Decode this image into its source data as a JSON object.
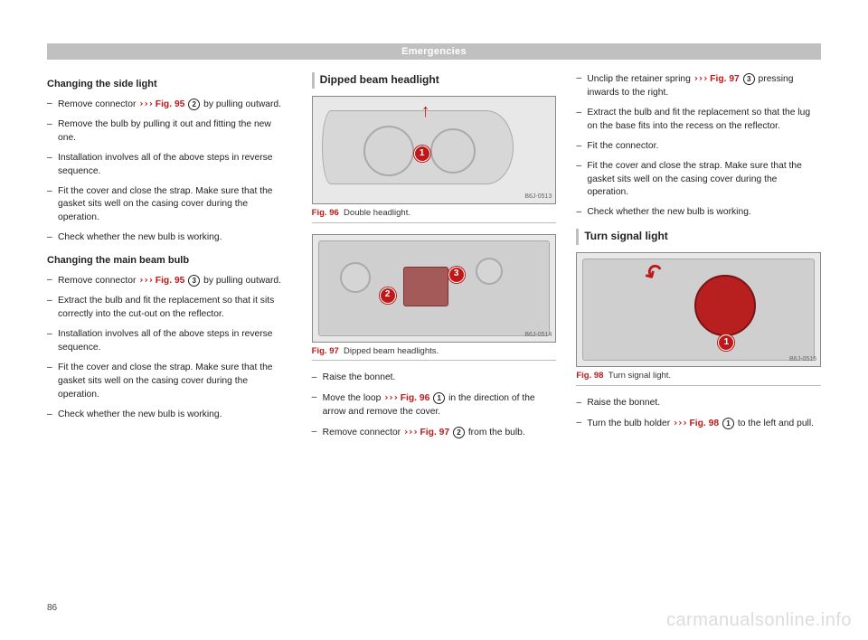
{
  "header": "Emergencies",
  "page_number": "86",
  "watermark": "carmanualsonline.info",
  "col1": {
    "h_side": "Changing the side light",
    "side_steps": [
      {
        "pre": "Remove connector ",
        "ref": "Fig. 95",
        "circle": "2",
        "post": " by pulling outward."
      },
      {
        "plain": "Remove the bulb by pulling it out and fitting the new one."
      },
      {
        "plain": "Installation involves all of the above steps in reverse sequence."
      },
      {
        "plain": "Fit the cover and close the strap. Make sure that the gasket sits well on the casing cover during the operation."
      },
      {
        "plain": "Check whether the new bulb is working."
      }
    ],
    "h_main": "Changing the main beam bulb",
    "main_steps": [
      {
        "pre": "Remove connector ",
        "ref": "Fig. 95",
        "circle": "3",
        "post": " by pulling outward."
      },
      {
        "plain": "Extract the bulb and fit the replacement so that it sits correctly into the cut-out on the reflector."
      },
      {
        "plain": "Installation involves all of the above steps in reverse sequence."
      },
      {
        "plain": "Fit the cover and close the strap. Make sure that the gasket sits well on the casing cover during the operation."
      },
      {
        "plain": "Check whether the new bulb is working."
      }
    ]
  },
  "col2": {
    "title": "Dipped beam headlight",
    "fig96": {
      "label": "Fig. 96",
      "caption": "Double headlight.",
      "code": "B6J-0513"
    },
    "fig97": {
      "label": "Fig. 97",
      "caption": "Dipped beam headlights.",
      "code": "B6J-0514"
    },
    "steps": [
      {
        "plain": "Raise the bonnet."
      },
      {
        "pre": "Move the loop ",
        "ref": "Fig. 96",
        "circle": "1",
        "post": " in the direction of the arrow and remove the cover."
      },
      {
        "pre": "Remove connector ",
        "ref": "Fig. 97",
        "circle": "2",
        "post": " from the bulb."
      }
    ]
  },
  "col3": {
    "top_steps": [
      {
        "pre": "Unclip the retainer spring ",
        "ref": "Fig. 97",
        "circle": "3",
        "post": " pressing inwards to the right."
      },
      {
        "plain": "Extract the bulb and fit the replacement so that the lug on the base fits into the recess on the reflector."
      },
      {
        "plain": "Fit the connector."
      },
      {
        "plain": "Fit the cover and close the strap. Make sure that the gasket sits well on the casing cover during the operation."
      },
      {
        "plain": "Check whether the new bulb is working."
      }
    ],
    "title": "Turn signal light",
    "fig98": {
      "label": "Fig. 98",
      "caption": "Turn signal light.",
      "code": "B6J-0515"
    },
    "bottom_steps": [
      {
        "plain": "Raise the bonnet."
      },
      {
        "pre": "Turn the bulb holder ",
        "ref": "Fig. 98",
        "circle": "1",
        "post": " to the left and pull."
      }
    ]
  },
  "colors": {
    "accent": "#c01818",
    "header_bg": "#c0c0c0",
    "header_text": "#ffffff",
    "watermark": "#dcdcdc"
  }
}
